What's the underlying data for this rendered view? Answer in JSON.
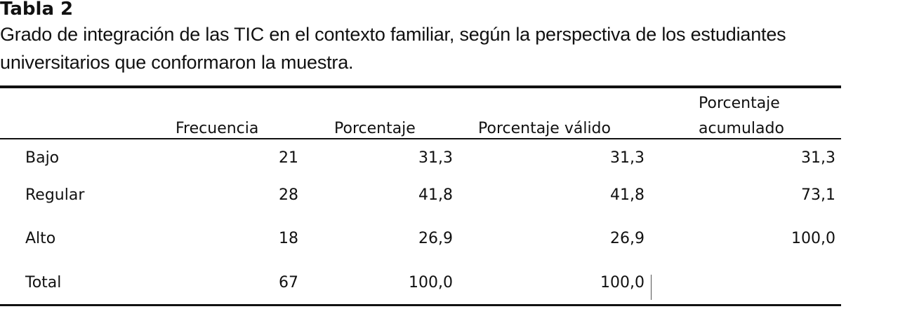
{
  "header": {
    "title": "Tabla 2",
    "caption_lines": [
      "Grado de integración de las TIC en el contexto familiar, según la perspectiva de los estudiantes",
      "universitarios que conformaron la muestra."
    ]
  },
  "table": {
    "columns": [
      "Frecuencia",
      "Porcentaje",
      "Porcentaje válido",
      [
        "Porcentaje",
        "acumulado"
      ]
    ],
    "rows": [
      [
        "Bajo",
        "21",
        "31,3",
        "31,3",
        "31,3"
      ],
      [
        "Regular",
        "28",
        "41,8",
        "41,8",
        "73,1"
      ],
      [
        "Alto",
        "18",
        "26,9",
        "26,9",
        "100,0"
      ],
      [
        "Total",
        "67",
        "100,0",
        "100,0"
      ]
    ]
  }
}
